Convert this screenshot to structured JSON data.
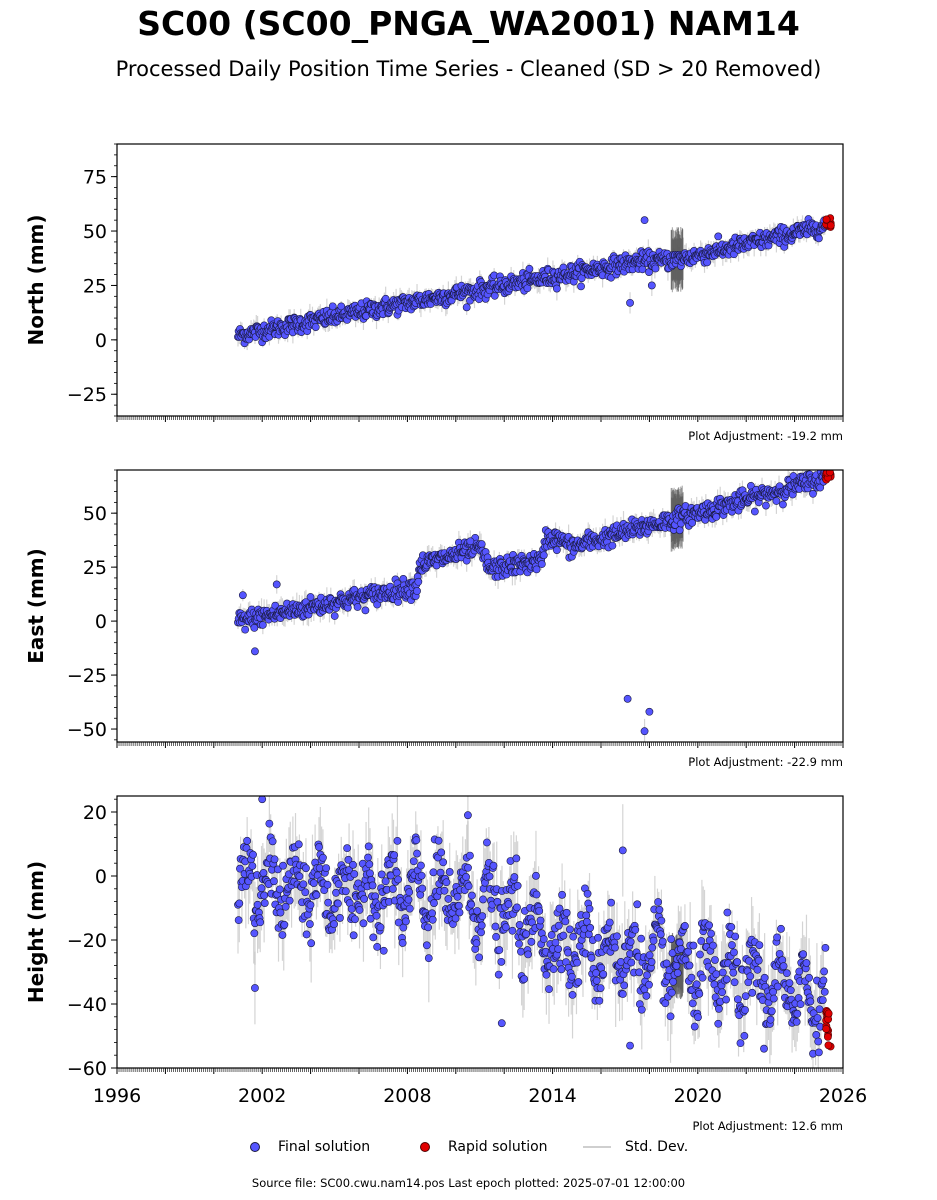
{
  "title": "SC00 (SC00_PNGA_WA2001) NAM14",
  "subtitle": "Processed Daily Position Time Series - Cleaned (SD > 20 Removed)",
  "legend": {
    "final": "Final solution",
    "rapid": "Rapid solution",
    "std": "Std. Dev."
  },
  "footer": "Source file: SC00.cwu.nam14.pos  Last epoch plotted: 2025-07-01 12:00:00",
  "colors": {
    "final": "#5555ff",
    "final_edge": "#1a1a40",
    "rapid": "#e00000",
    "std": "#b8b8b8",
    "std_dark": "#555555"
  },
  "chart_data": [
    {
      "type": "scatter",
      "panel": "north",
      "ylabel": "North (mm)",
      "adjustment": "Plot Adjustment: -19.2 mm",
      "xlim": [
        1996,
        2026
      ],
      "ylim": [
        -35,
        90
      ],
      "yticks": [
        -25,
        0,
        25,
        50,
        75
      ],
      "trend": [
        [
          2001.0,
          2
        ],
        [
          2008.0,
          17
        ],
        [
          2014.0,
          29
        ],
        [
          2017.5,
          36
        ],
        [
          2019.3,
          37
        ],
        [
          2025.5,
          53
        ]
      ],
      "noise": 2.0,
      "outliers": [
        [
          2017.2,
          17
        ],
        [
          2017.8,
          55
        ],
        [
          2018.1,
          25
        ]
      ],
      "series": [
        {
          "name": "Final solution",
          "x_range": [
            2001.0,
            2025.3
          ]
        },
        {
          "name": "Rapid solution",
          "x_range": [
            2025.3,
            2025.5
          ],
          "y_approx": 53
        }
      ]
    },
    {
      "type": "scatter",
      "panel": "east",
      "ylabel": "East (mm)",
      "adjustment": "Plot Adjustment: -22.9 mm",
      "xlim": [
        1996,
        2026
      ],
      "ylim": [
        -56,
        70
      ],
      "yticks": [
        -50,
        -25,
        0,
        25,
        50
      ],
      "trend": [
        [
          2001.0,
          0
        ],
        [
          2008.4,
          16
        ],
        [
          2008.5,
          26
        ],
        [
          2011.0,
          34
        ],
        [
          2011.4,
          24
        ],
        [
          2013.6,
          28
        ],
        [
          2013.7,
          39
        ],
        [
          2014.5,
          37
        ],
        [
          2014.7,
          34
        ],
        [
          2018.2,
          45
        ],
        [
          2019.3,
          48
        ],
        [
          2025.5,
          67
        ]
      ],
      "noise": 2.2,
      "outliers": [
        [
          2001.2,
          12
        ],
        [
          2001.7,
          -14
        ],
        [
          2002.6,
          17
        ],
        [
          2017.1,
          -36
        ],
        [
          2017.8,
          -51
        ],
        [
          2018.0,
          -42
        ],
        [
          2010.6,
          37
        ]
      ],
      "series": [
        {
          "name": "Final solution",
          "x_range": [
            2001.0,
            2025.3
          ]
        },
        {
          "name": "Rapid solution",
          "x_range": [
            2025.3,
            2025.5
          ],
          "y_approx": 67
        }
      ]
    },
    {
      "type": "scatter",
      "panel": "height",
      "ylabel": "Height (mm)",
      "adjustment": "Plot Adjustment: 12.6 mm",
      "xlim": [
        1996,
        2026
      ],
      "xticks": [
        1996,
        2002,
        2008,
        2014,
        2020,
        2026
      ],
      "ylim": [
        -60,
        25
      ],
      "yticks": [
        -60,
        -40,
        -20,
        0,
        20
      ],
      "trend": [
        [
          2001.0,
          -3
        ],
        [
          2011.0,
          -7
        ],
        [
          2014.0,
          -20
        ],
        [
          2019.0,
          -28
        ],
        [
          2025.5,
          -38
        ]
      ],
      "seasonal_amplitude": 8,
      "noise": 5.5,
      "outliers": [
        [
          2001.7,
          -35
        ],
        [
          2002.0,
          24
        ],
        [
          2010.5,
          19
        ],
        [
          2011.9,
          -46
        ],
        [
          2016.9,
          8
        ],
        [
          2017.2,
          -53
        ]
      ],
      "series": [
        {
          "name": "Final solution",
          "x_range": [
            2001.0,
            2025.3
          ]
        },
        {
          "name": "Rapid solution",
          "x_range": [
            2025.3,
            2025.5
          ],
          "y_approx": -44
        }
      ]
    }
  ]
}
